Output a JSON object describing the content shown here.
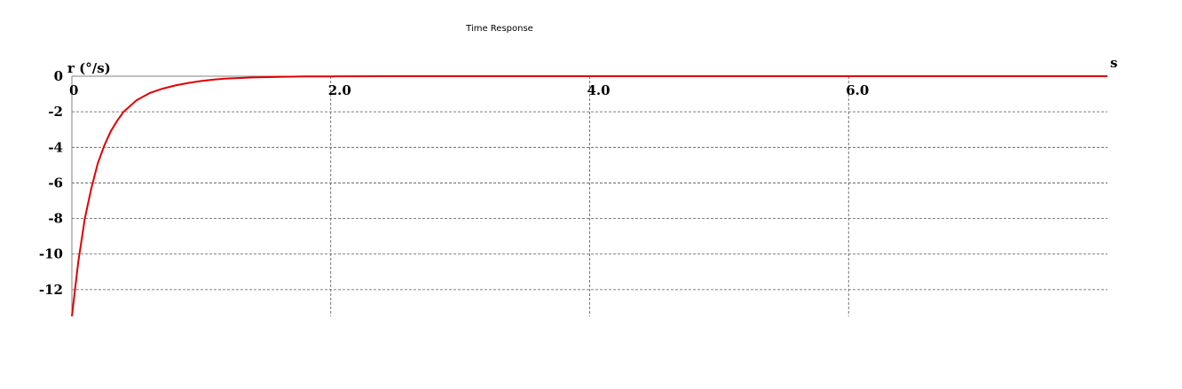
{
  "chart_data": {
    "type": "line",
    "title": "Time Response",
    "xlabel": "s",
    "ylabel": "r (°/s)",
    "xlim": [
      0,
      8
    ],
    "ylim": [
      -13.5,
      0
    ],
    "x_ticks": [
      0,
      2,
      4,
      6
    ],
    "x_tick_labels": [
      "0",
      "2.0",
      "4.0",
      "6.0"
    ],
    "y_ticks": [
      0,
      -2,
      -4,
      -6,
      -8,
      -10,
      -12
    ],
    "y_tick_labels": [
      "0",
      "-2",
      "-4",
      "-6",
      "-8",
      "-10",
      "-12"
    ],
    "grid": true,
    "series": [
      {
        "color": "#e00000",
        "x": [
          0,
          0.05,
          0.1,
          0.15,
          0.2,
          0.25,
          0.3,
          0.35,
          0.4,
          0.5,
          0.6,
          0.7,
          0.8,
          0.9,
          1.0,
          1.1,
          1.2,
          1.4,
          1.6,
          1.8,
          2.0,
          2.5,
          3.0,
          4.0,
          5.0,
          6.0,
          7.0,
          8.0
        ],
        "y": [
          -13.5,
          -10.4,
          -8.0,
          -6.3,
          -4.9,
          -3.9,
          -3.1,
          -2.5,
          -2.0,
          -1.35,
          -0.95,
          -0.7,
          -0.52,
          -0.38,
          -0.27,
          -0.19,
          -0.13,
          -0.07,
          -0.035,
          -0.015,
          -0.008,
          0,
          0,
          0,
          0,
          0,
          0,
          0
        ]
      }
    ]
  }
}
